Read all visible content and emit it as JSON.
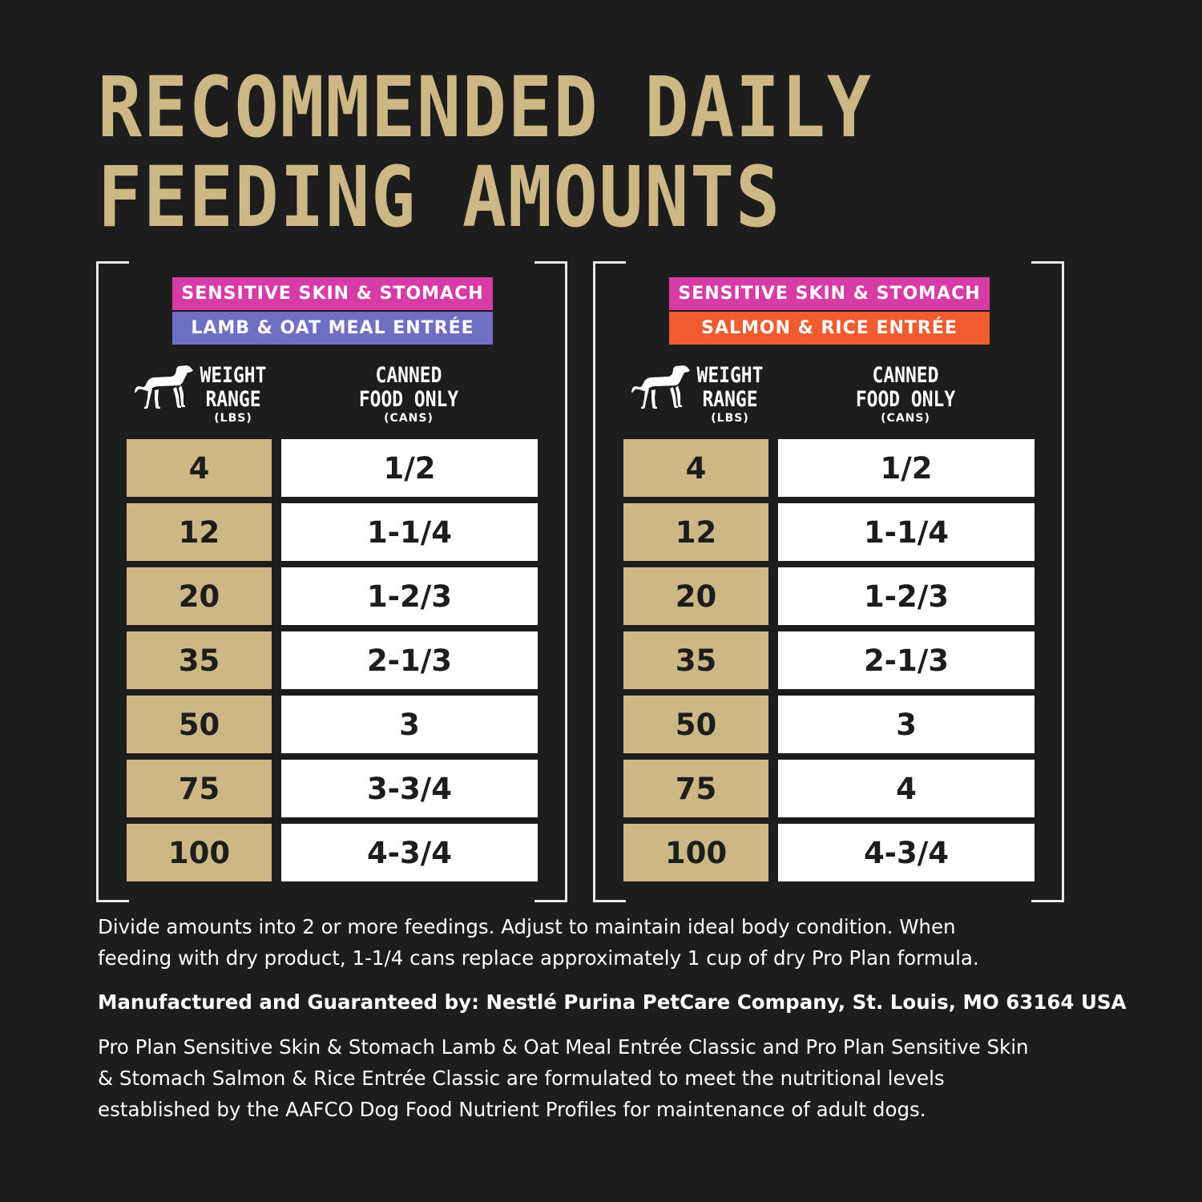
{
  "title": {
    "line1": "RECOMMENDED DAILY",
    "line2": "FEEDING AMOUNTS"
  },
  "colors": {
    "background": "#1d1d1d",
    "gold": "#cdb784",
    "magenta": "#d63ba6",
    "lavender": "#6e6fc2",
    "orange": "#f05c2f"
  },
  "icons": [
    "dog-icon"
  ],
  "header": {
    "weight_line1": "WEIGHT",
    "weight_line2": "RANGE",
    "weight_unit": "(LBS)",
    "food_line1": "CANNED",
    "food_line2": "FOOD ONLY",
    "food_unit": "(CANS)"
  },
  "tables": [
    {
      "line1": "SENSITIVE SKIN & STOMACH",
      "line2": "LAMB & OAT MEAL ENTRÉE",
      "line1_color": "#d63ba6",
      "line2_color": "#6e6fc2",
      "rows": [
        {
          "weight": "4",
          "amount": "1/2"
        },
        {
          "weight": "12",
          "amount": "1-1/4"
        },
        {
          "weight": "20",
          "amount": "1-2/3"
        },
        {
          "weight": "35",
          "amount": "2-1/3"
        },
        {
          "weight": "50",
          "amount": "3"
        },
        {
          "weight": "75",
          "amount": "3-3/4"
        },
        {
          "weight": "100",
          "amount": "4-3/4"
        }
      ]
    },
    {
      "line1": "SENSITIVE SKIN & STOMACH",
      "line2": "SALMON & RICE ENTRÉE",
      "line1_color": "#d63ba6",
      "line2_color": "#f05c2f",
      "rows": [
        {
          "weight": "4",
          "amount": "1/2"
        },
        {
          "weight": "12",
          "amount": "1-1/4"
        },
        {
          "weight": "20",
          "amount": "1-2/3"
        },
        {
          "weight": "35",
          "amount": "2-1/3"
        },
        {
          "weight": "50",
          "amount": "3"
        },
        {
          "weight": "75",
          "amount": "4"
        },
        {
          "weight": "100",
          "amount": "4-3/4"
        }
      ]
    }
  ],
  "notes": {
    "divide_line1": "Divide amounts into 2 or more feedings. Adjust to maintain ideal body condition. When",
    "divide_line2": "feeding with dry product, 1-1/4 cans replace approximately 1 cup of dry Pro Plan formula.",
    "manufacturer": "Manufactured and Guaranteed by: Nestlé Purina PetCare Company, St. Louis, MO 63164 USA",
    "aafco_line1": "Pro Plan Sensitive Skin & Stomach Lamb & Oat Meal Entrée Classic and Pro Plan Sensitive Skin",
    "aafco_line2": "& Stomach Salmon & Rice Entrée Classic are formulated to meet the nutritional levels",
    "aafco_line3": "established by the AAFCO Dog Food Nutrient Profiles for maintenance of adult dogs."
  }
}
